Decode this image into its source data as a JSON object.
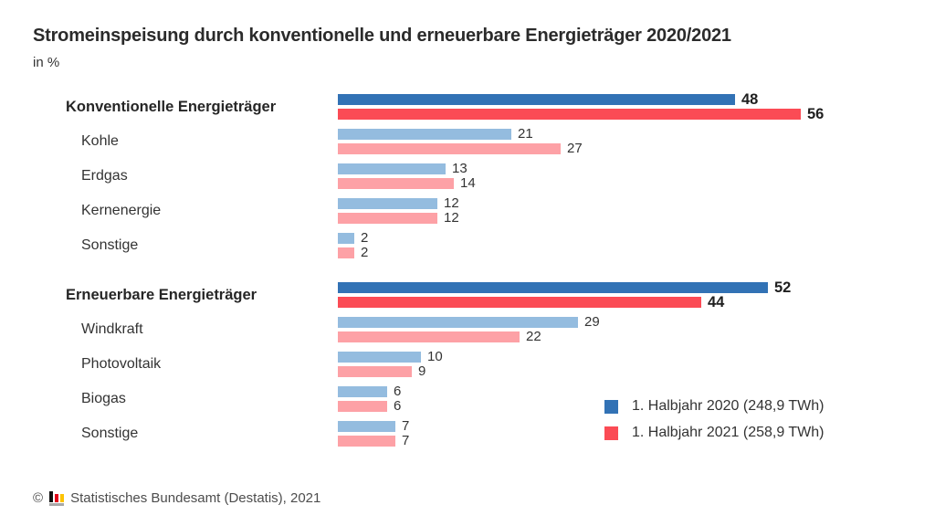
{
  "header": {
    "title": "Stromeinspeisung durch konventionelle und erneuerbare Energieträger 2020/2021",
    "subtitle": "in %"
  },
  "colors": {
    "strong_2020_blue": "#3272b5",
    "strong_2021_red": "#fb4b55",
    "light_2020_blue": "#94bcdf",
    "light_2021_red": "#fda1a6",
    "title_text": "#2b2b2b",
    "body_text": "#333333",
    "footer_text": "#4d4d4d"
  },
  "chart_data": {
    "type": "bar",
    "orientation": "horizontal",
    "title": "Stromeinspeisung durch konventionelle und erneuerbare Energieträger 2020/2021",
    "unit": "in %",
    "value_axis_max": 56,
    "grid": false,
    "data_labels": true,
    "legend_position": "bottom-right",
    "series_names": [
      "1. Halbjahr 2020",
      "1. Halbjahr 2021"
    ],
    "sections": [
      {
        "name": "Konventionelle Energieträger",
        "rows": [
          {
            "label": "Konventionelle Energieträger",
            "group": true,
            "values": [
              48,
              56
            ]
          },
          {
            "label": "Kohle",
            "group": false,
            "values": [
              21,
              27
            ]
          },
          {
            "label": "Erdgas",
            "group": false,
            "values": [
              13,
              14
            ]
          },
          {
            "label": "Kernenergie",
            "group": false,
            "values": [
              12,
              12
            ]
          },
          {
            "label": "Sonstige",
            "group": false,
            "values": [
              2,
              2
            ]
          }
        ]
      },
      {
        "name": "Erneuerbare Energieträger",
        "rows": [
          {
            "label": "Erneuerbare Energieträger",
            "group": true,
            "values": [
              52,
              44
            ]
          },
          {
            "label": "Windkraft",
            "group": false,
            "values": [
              29,
              22
            ]
          },
          {
            "label": "Photovoltaik",
            "group": false,
            "values": [
              10,
              9
            ]
          },
          {
            "label": "Biogas",
            "group": false,
            "values": [
              6,
              6
            ]
          },
          {
            "label": "Sonstige",
            "group": false,
            "values": [
              7,
              7
            ]
          }
        ]
      }
    ]
  },
  "legend": {
    "items": [
      {
        "label": "1. Halbjahr 2020 (248,9 TWh)",
        "color": "#3272b5"
      },
      {
        "label": "1. Halbjahr 2021 (258,9 TWh)",
        "color": "#fb4b55"
      }
    ]
  },
  "footer": {
    "copyright": "©",
    "source": "Statistisches Bundesamt (Destatis), 2021"
  }
}
